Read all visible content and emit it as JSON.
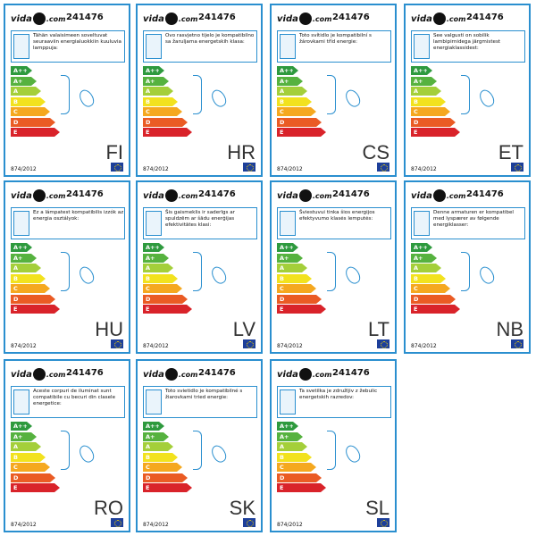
{
  "brand": "vida",
  "brand_suffix": ".com",
  "product_code": "241476",
  "regulation": "874/2012",
  "icons": {
    "lamp": "lamp-icon",
    "bulb": "bulb-icon",
    "eu_flag": "eu-flag-icon"
  },
  "energy_classes": [
    {
      "label": "A++",
      "color": "#2e9a3e",
      "fraction": 0.28
    },
    {
      "label": "A+",
      "color": "#56b23f",
      "fraction": 0.36
    },
    {
      "label": "A",
      "color": "#a4cf3a",
      "fraction": 0.44
    },
    {
      "label": "B",
      "color": "#f2e21e",
      "fraction": 0.52
    },
    {
      "label": "C",
      "color": "#f5a81f",
      "fraction": 0.6
    },
    {
      "label": "D",
      "color": "#ea5b24",
      "fraction": 0.68
    },
    {
      "label": "E",
      "color": "#d9232a",
      "fraction": 0.76
    }
  ],
  "labels": [
    {
      "lang": "FI",
      "text": "Tähän valaisimeen soveltuvat seuraaviin energialuokkiin kuuluvia lamppuja:"
    },
    {
      "lang": "HR",
      "text": "Ovo rasvjetno tijelo je kompatibilno sa žaruljama energetskih klasa:"
    },
    {
      "lang": "CS",
      "text": "Toto svítidlo je kompatibilní s žárovkami tříd energie:"
    },
    {
      "lang": "ET",
      "text": "See valgusti on sobilik lambipirnidega järgmistest energiaklassidest:"
    },
    {
      "lang": "HU",
      "text": "Ez a lámpatest kompatibilis izzók az energia osztályok:"
    },
    {
      "lang": "LV",
      "text": "Šis gaismeklis ir saderīgs ar spuldzēm ar šādu enerģijas efektivitātes klasi:"
    },
    {
      "lang": "LT",
      "text": "Šviestuvui tinka šios energijos efektyvumo klasės lemputės:"
    },
    {
      "lang": "NB",
      "text": "Denne armaturen er kompatibel med lyspærer av følgende energiklasser:"
    },
    {
      "lang": "RO",
      "text": "Aceste corpuri de iluminat sunt compatibile cu becuri din clasele energetice:"
    },
    {
      "lang": "SK",
      "text": "Toto svietidlo je kompatibilné s žiarovkami tried energie:"
    },
    {
      "lang": "SL",
      "text": "Ta svetilka je združljiv z žebulic energetskih razredov:"
    }
  ]
}
